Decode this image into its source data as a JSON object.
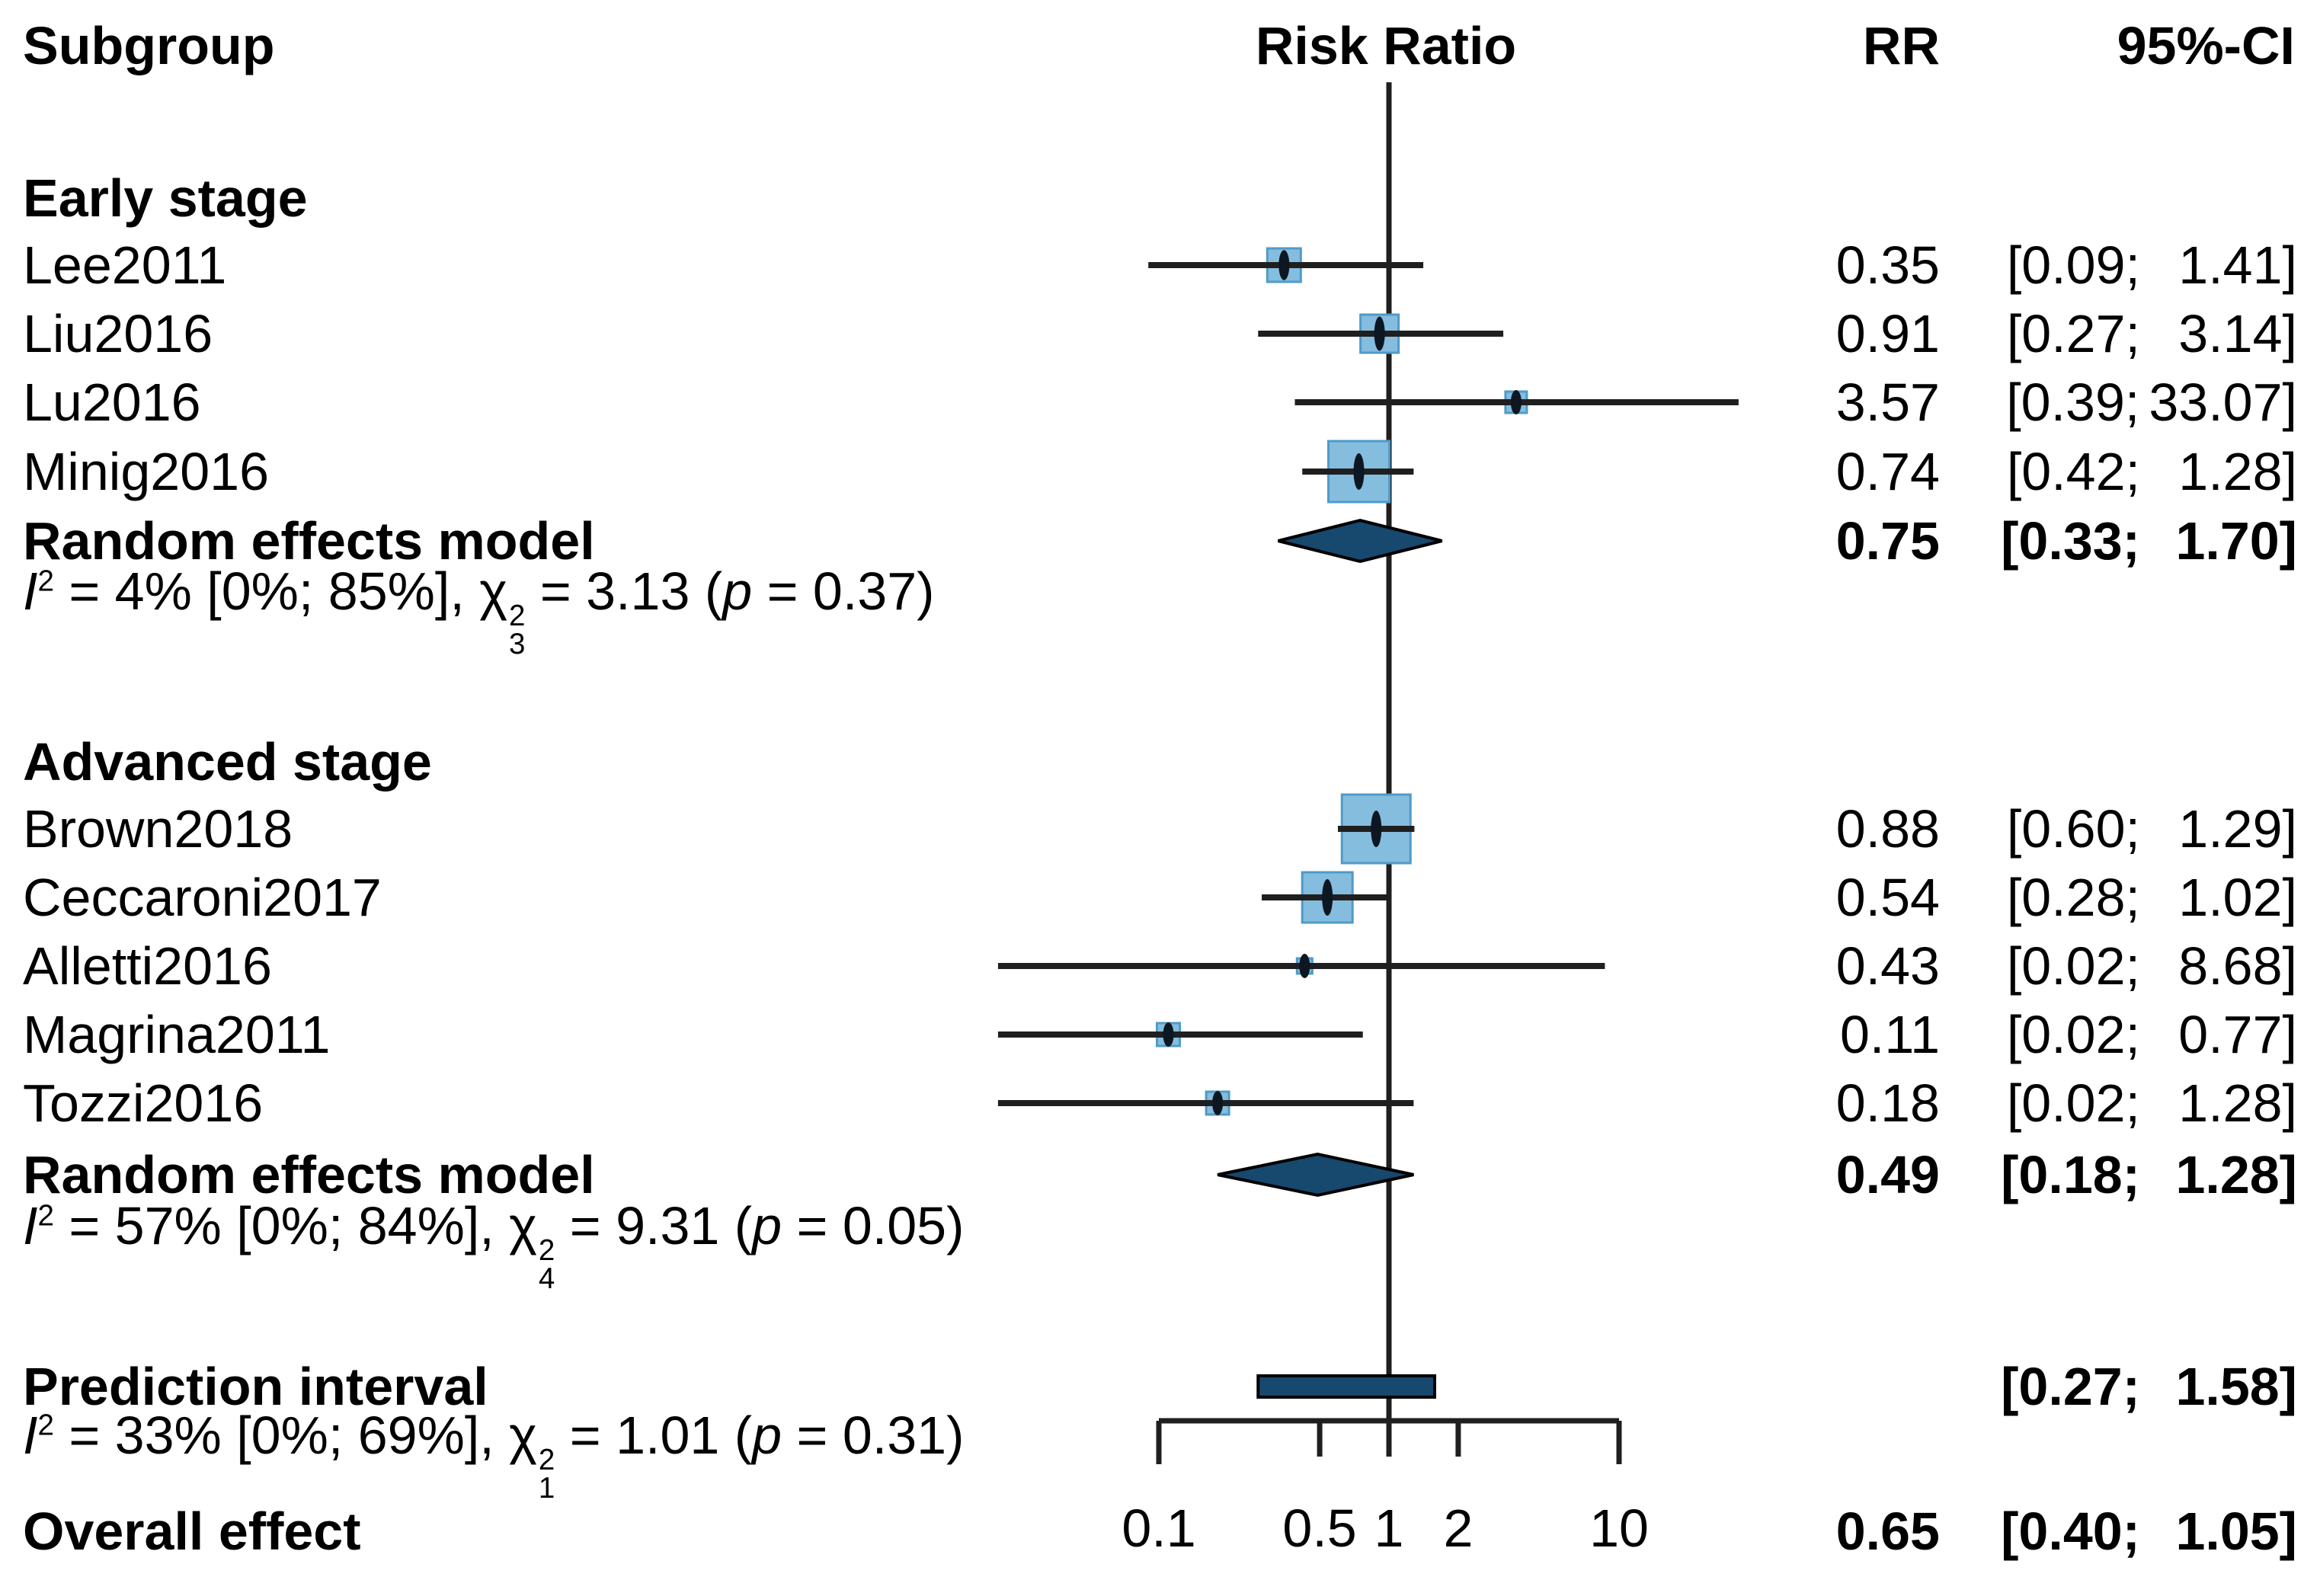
{
  "header": {
    "subgroup": "Subgroup",
    "risk_ratio": "Risk Ratio",
    "rr": "RR",
    "ci": "95%-CI"
  },
  "colors": {
    "marker_fill": "#85bddf",
    "marker_stroke": "#4f9bc8",
    "summary_fill": "#17486e",
    "summary_stroke": "#000000",
    "line": "#1f1f1f",
    "point_tick": "#0d1722",
    "text": "#000000",
    "background": "#ffffff"
  },
  "rows": [
    {
      "kind": "heading",
      "label": "Early stage"
    },
    {
      "kind": "study",
      "label": "Lee2011",
      "rr": "0.35",
      "ci_lo": "[0.09;",
      "ci_hi": "1.41]"
    },
    {
      "kind": "study",
      "label": "Liu2016",
      "rr": "0.91",
      "ci_lo": "[0.27;",
      "ci_hi": "3.14]"
    },
    {
      "kind": "study",
      "label": "Lu2016",
      "rr": "3.57",
      "ci_lo": "[0.39;",
      "ci_hi": "33.07]"
    },
    {
      "kind": "study",
      "label": "Minig2016",
      "rr": "0.74",
      "ci_lo": "[0.42;",
      "ci_hi": "1.28]"
    },
    {
      "kind": "summary",
      "label": "Random effects model",
      "rr": "0.75",
      "ci_lo": "[0.33;",
      "ci_hi": "1.70]"
    },
    {
      "kind": "stats",
      "i": "I",
      "i_sup": "2",
      "mid": " = 4% [0%; 85%], ",
      "chi": "χ",
      "chi_sup": "2",
      "chi_sub": "3",
      "tail1": " = 3.13 (",
      "p": "p",
      "tail2": " = 0.37)"
    },
    {
      "kind": "heading",
      "label": "Advanced stage"
    },
    {
      "kind": "study",
      "label": "Brown2018",
      "rr": "0.88",
      "ci_lo": "[0.60;",
      "ci_hi": "1.29]"
    },
    {
      "kind": "study",
      "label": "Ceccaroni2017",
      "rr": "0.54",
      "ci_lo": "[0.28;",
      "ci_hi": "1.02]"
    },
    {
      "kind": "study",
      "label": "Alletti2016",
      "rr": "0.43",
      "ci_lo": "[0.02;",
      "ci_hi": "8.68]"
    },
    {
      "kind": "study",
      "label": "Magrina2011",
      "rr": "0.11",
      "ci_lo": "[0.02;",
      "ci_hi": "0.77]"
    },
    {
      "kind": "study",
      "label": "Tozzi2016",
      "rr": "0.18",
      "ci_lo": "[0.02;",
      "ci_hi": "1.28]"
    },
    {
      "kind": "summary",
      "label": "Random effects model",
      "rr": "0.49",
      "ci_lo": "[0.18;",
      "ci_hi": "1.28]"
    },
    {
      "kind": "stats",
      "i": "I",
      "i_sup": "2",
      "mid": " = 57% [0%; 84%], ",
      "chi": "χ",
      "chi_sup": "2",
      "chi_sub": "4",
      "tail1": " = 9.31 (",
      "p": "p",
      "tail2": " = 0.05)"
    },
    {
      "kind": "summary",
      "label": "Prediction interval",
      "rr": "",
      "ci_lo": "[0.27;",
      "ci_hi": "1.58]"
    },
    {
      "kind": "stats",
      "i": "I",
      "i_sup": "2",
      "mid": " = 33% [0%; 69%], ",
      "chi": "χ",
      "chi_sup": "2",
      "chi_sub": "1",
      "tail1": " = 1.01 (",
      "p": "p",
      "tail2": " = 0.31)"
    },
    {
      "kind": "summary",
      "label": "Overall effect",
      "rr": "0.65",
      "ci_lo": "[0.40;",
      "ci_hi": "1.05]"
    }
  ],
  "chart_data": {
    "type": "scatter",
    "subtype": "forest-plot-meta-analysis",
    "title": "Risk Ratio",
    "x_axis": {
      "scale": "log10",
      "ticks": [
        0.1,
        0.5,
        1,
        2,
        10
      ],
      "tick_labels": [
        "0.1",
        "0.5",
        "1",
        "2",
        "10"
      ],
      "range": [
        0.1,
        10
      ],
      "reference_line": 1
    },
    "markers": [
      {
        "row": 1,
        "kind": "square",
        "label": "Lee2011",
        "rr": 0.35,
        "ci": [
          0.09,
          1.41
        ],
        "size": 44
      },
      {
        "row": 2,
        "kind": "square",
        "label": "Liu2016",
        "rr": 0.91,
        "ci": [
          0.27,
          3.14
        ],
        "size": 50
      },
      {
        "row": 3,
        "kind": "square",
        "label": "Lu2016",
        "rr": 3.57,
        "ci": [
          0.39,
          33.07
        ],
        "size": 28
      },
      {
        "row": 4,
        "kind": "square",
        "label": "Minig2016",
        "rr": 0.74,
        "ci": [
          0.42,
          1.28
        ],
        "size": 80
      },
      {
        "row": 5,
        "kind": "diamond",
        "label": "Random effects model (early)",
        "rr": 0.75,
        "ci": [
          0.33,
          1.7
        ]
      },
      {
        "row": 8,
        "kind": "square",
        "label": "Brown2018",
        "rr": 0.88,
        "ci": [
          0.6,
          1.29
        ],
        "size": 90
      },
      {
        "row": 9,
        "kind": "square",
        "label": "Ceccaroni2017",
        "rr": 0.54,
        "ci": [
          0.28,
          1.02
        ],
        "size": 66
      },
      {
        "row": 10,
        "kind": "square",
        "label": "Alletti2016",
        "rr": 0.43,
        "ci": [
          0.02,
          8.68
        ],
        "size": 20
      },
      {
        "row": 11,
        "kind": "square",
        "label": "Magrina2011",
        "rr": 0.11,
        "ci": [
          0.02,
          0.77
        ],
        "size": 30
      },
      {
        "row": 12,
        "kind": "square",
        "label": "Tozzi2016",
        "rr": 0.18,
        "ci": [
          0.02,
          1.28
        ],
        "size": 30
      },
      {
        "row": 13,
        "kind": "diamond",
        "label": "Random effects model (advanced)",
        "rr": 0.49,
        "ci": [
          0.18,
          1.28
        ]
      },
      {
        "row": 15,
        "kind": "bar",
        "label": "Prediction interval",
        "ci": [
          0.27,
          1.58
        ]
      }
    ],
    "groups": [
      {
        "name": "Early stage",
        "summary_rr": 0.75,
        "summary_ci": [
          0.33,
          1.7
        ],
        "heterogeneity": {
          "i2": "4%",
          "i2_ci": "[0%; 85%]",
          "chi2_df": 3,
          "chi2": 3.13,
          "p": 0.37
        }
      },
      {
        "name": "Advanced stage",
        "summary_rr": 0.49,
        "summary_ci": [
          0.18,
          1.28
        ],
        "heterogeneity": {
          "i2": "57%",
          "i2_ci": "[0%; 84%]",
          "chi2_df": 4,
          "chi2": 9.31,
          "p": 0.05
        }
      }
    ],
    "prediction_interval": {
      "ci": [
        0.27,
        1.58
      ]
    },
    "overall_heterogeneity": {
      "i2": "33%",
      "i2_ci": "[0%; 69%]",
      "chi2_df": 1,
      "chi2": 1.01,
      "p": 0.31
    },
    "overall_effect": {
      "rr": 0.65,
      "ci": [
        0.4,
        1.05
      ]
    }
  }
}
